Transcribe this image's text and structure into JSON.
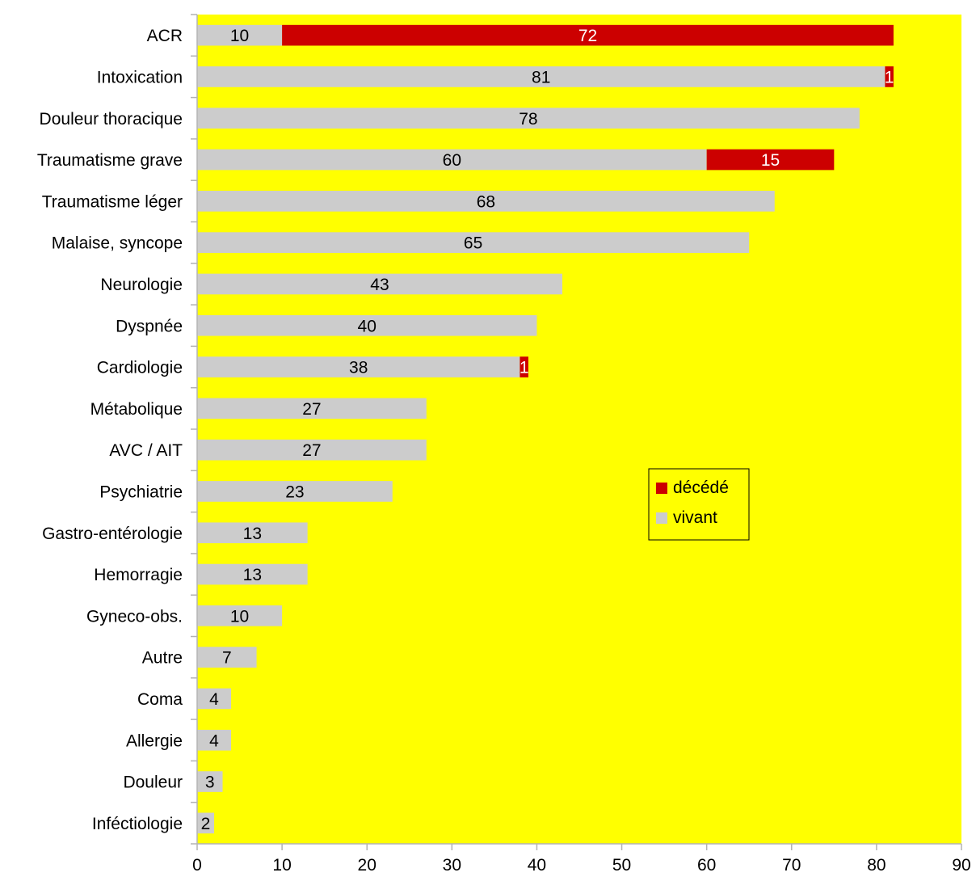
{
  "chart_data": {
    "type": "bar",
    "orientation": "horizontal",
    "stacked": true,
    "title": "",
    "xlabel": "",
    "ylabel": "",
    "xlim": [
      0,
      90
    ],
    "x_ticks": [
      0,
      10,
      20,
      30,
      40,
      50,
      60,
      70,
      80,
      90
    ],
    "grid": false,
    "legend_position": "center-right",
    "plot_background": "#ffff00",
    "categories": [
      "ACR",
      "Intoxication",
      "Douleur thoracique",
      "Traumatisme grave",
      "Traumatisme léger",
      "Malaise, syncope",
      "Neurologie",
      "Dyspnée",
      "Cardiologie",
      "Métabolique",
      "AVC / AIT",
      "Psychiatrie",
      "Gastro-entérologie",
      "Hemorragie",
      "Gyneco-obs.",
      "Autre",
      "Coma",
      "Allergie",
      "Douleur",
      "Inféctiologie"
    ],
    "series": [
      {
        "name": "vivant",
        "color": "#cccccc",
        "label_color": "#000000",
        "values": [
          10,
          81,
          78,
          60,
          68,
          65,
          43,
          40,
          38,
          27,
          27,
          23,
          13,
          13,
          10,
          7,
          4,
          4,
          3,
          2
        ]
      },
      {
        "name": "décédé",
        "color": "#cc0000",
        "label_color": "#ffffff",
        "values": [
          72,
          1,
          0,
          15,
          0,
          0,
          0,
          0,
          1,
          0,
          0,
          0,
          0,
          0,
          0,
          0,
          0,
          0,
          0,
          0
        ]
      }
    ],
    "legend_order": [
      "décédé",
      "vivant"
    ]
  }
}
